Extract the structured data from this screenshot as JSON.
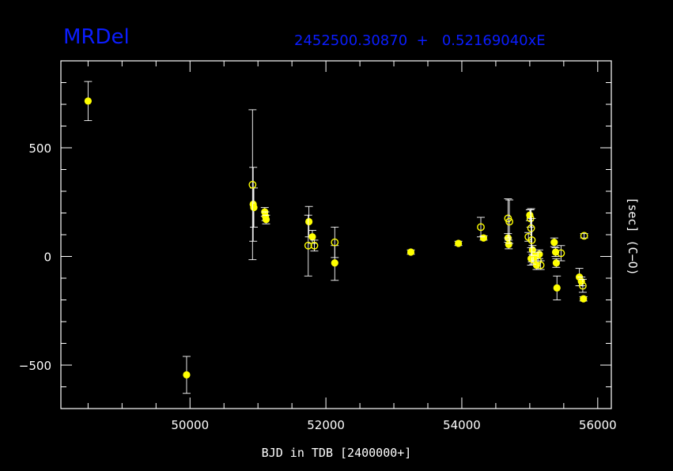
{
  "header": {
    "star_name": "MRDel",
    "ephemeris": "2452500.30870  +   0.52169040xE"
  },
  "axes": {
    "xlabel": "BJD in TDB [2400000+]",
    "ylabel": "[sec] (C−O)"
  },
  "colors": {
    "background": "#000000",
    "title": "#0b1dff",
    "points": "#ffff00",
    "axes": "#ffffff"
  },
  "chart_data": {
    "type": "scatter",
    "xlim": [
      48100,
      56200
    ],
    "ylim": [
      -700,
      900
    ],
    "xticks": [
      50000,
      52000,
      54000,
      56000
    ],
    "yticks": [
      -500,
      0,
      500
    ],
    "x_minor_step": 500,
    "y_minor_step": 100,
    "grid": false,
    "series": [
      {
        "marker": "filled-circle",
        "points": [
          {
            "x": 48500,
            "y": 715,
            "err": 90
          },
          {
            "x": 49950,
            "y": -545,
            "err": 85
          },
          {
            "x": 50930,
            "y": 240,
            "err": 170
          },
          {
            "x": 50940,
            "y": 225,
            "err": 90
          },
          {
            "x": 51100,
            "y": 205,
            "err": 20
          },
          {
            "x": 51110,
            "y": 185,
            "err": 20
          },
          {
            "x": 51120,
            "y": 170,
            "err": 20
          },
          {
            "x": 51750,
            "y": 160,
            "err": 70
          },
          {
            "x": 51800,
            "y": 90,
            "err": 30
          },
          {
            "x": 52130,
            "y": -30,
            "err": 80
          },
          {
            "x": 53250,
            "y": 20,
            "err": 10
          },
          {
            "x": 53950,
            "y": 60,
            "err": 10
          },
          {
            "x": 54320,
            "y": 85,
            "err": 10
          },
          {
            "x": 54680,
            "y": 85,
            "err": 20
          },
          {
            "x": 54690,
            "y": 55,
            "err": 20
          },
          {
            "x": 55000,
            "y": 190,
            "err": 25
          },
          {
            "x": 55020,
            "y": -10,
            "err": 30
          },
          {
            "x": 55040,
            "y": 30,
            "err": 20
          },
          {
            "x": 55080,
            "y": 0,
            "err": 20
          },
          {
            "x": 55100,
            "y": -40,
            "err": 20
          },
          {
            "x": 55140,
            "y": 10,
            "err": 20
          },
          {
            "x": 55360,
            "y": 65,
            "err": 20
          },
          {
            "x": 55380,
            "y": 20,
            "err": 20
          },
          {
            "x": 55390,
            "y": -30,
            "err": 20
          },
          {
            "x": 55400,
            "y": -145,
            "err": 55
          },
          {
            "x": 55730,
            "y": -95,
            "err": 40
          },
          {
            "x": 55760,
            "y": -115,
            "err": 20
          },
          {
            "x": 55790,
            "y": -195,
            "err": 10
          }
        ]
      },
      {
        "marker": "open-circle",
        "points": [
          {
            "x": 50920,
            "y": 330,
            "err": 345
          },
          {
            "x": 51740,
            "y": 50,
            "err": 140
          },
          {
            "x": 51830,
            "y": 50,
            "err": 25
          },
          {
            "x": 52130,
            "y": 65,
            "err": 70
          },
          {
            "x": 54280,
            "y": 135,
            "err": 45
          },
          {
            "x": 54680,
            "y": 175,
            "err": 90
          },
          {
            "x": 54700,
            "y": 160,
            "err": 100
          },
          {
            "x": 54980,
            "y": 90,
            "err": 20
          },
          {
            "x": 55010,
            "y": 175,
            "err": 40
          },
          {
            "x": 55020,
            "y": 130,
            "err": 90
          },
          {
            "x": 55030,
            "y": 75,
            "err": 100
          },
          {
            "x": 55050,
            "y": -15,
            "err": 20
          },
          {
            "x": 55120,
            "y": -20,
            "err": 40
          },
          {
            "x": 55160,
            "y": -40,
            "err": 20
          },
          {
            "x": 55460,
            "y": 15,
            "err": 35
          },
          {
            "x": 55780,
            "y": -135,
            "err": 30
          },
          {
            "x": 55800,
            "y": 95,
            "err": 10
          }
        ]
      }
    ]
  }
}
